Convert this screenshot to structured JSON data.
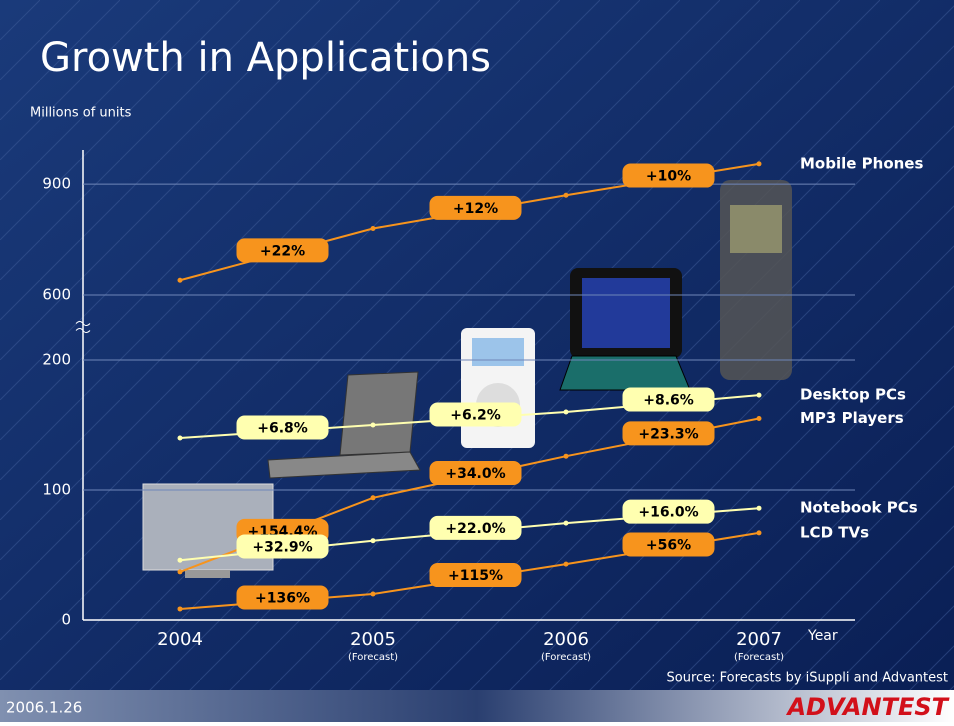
{
  "chart_data": {
    "type": "line",
    "title": "Growth in Applications",
    "y_label": "Millions of units",
    "x_label": "Year",
    "source": "Source:  Forecasts by iSuppli and Advantest",
    "categories": [
      "2004",
      "2005",
      "2006",
      "2007"
    ],
    "x_sublabels": [
      null,
      "(Forecast)",
      "(Forecast)",
      "(Forecast)"
    ],
    "ylim": [
      0,
      960
    ],
    "axis_break": [
      200,
      600
    ],
    "yticks": [
      0,
      100,
      200,
      600,
      900
    ],
    "grid": true,
    "series": [
      {
        "name": "Mobile Phones",
        "color": "#f7941d",
        "values": [
          640,
          780,
          870,
          955
        ],
        "growth_labels": [
          "+22%",
          "+12%",
          "+10%"
        ]
      },
      {
        "name": "Desktop PCs",
        "color": "#ffffb0",
        "values": [
          140,
          150,
          160,
          173
        ],
        "growth_labels": [
          "+6.8%",
          "+6.2%",
          "+8.6%"
        ]
      },
      {
        "name": "MP3 Players",
        "color": "#f7941d",
        "values": [
          37,
          94,
          126,
          155
        ],
        "growth_labels": [
          "+154.4%",
          "+34.0%",
          "+23.3%"
        ]
      },
      {
        "name": "Notebook PCs",
        "color": "#ffffb0",
        "values": [
          46,
          61,
          74.5,
          86
        ],
        "growth_labels": [
          "+32.9%",
          "+22.0%",
          "+16.0%"
        ]
      },
      {
        "name": "LCD TVs",
        "color": "#f7941d",
        "values": [
          8.5,
          20,
          43,
          67
        ],
        "growth_labels": [
          "+136%",
          "+115%",
          "+56%"
        ]
      }
    ]
  },
  "footer": {
    "date": "2006.1.26",
    "logo": "ADVANTEST"
  }
}
